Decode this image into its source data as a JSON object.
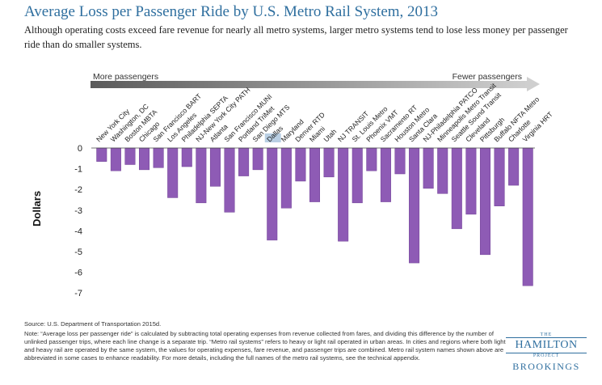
{
  "title": "Average Loss per Passenger Ride by U.S. Metro Rail System, 2013",
  "subtitle": "Although operating costs exceed fare revenue for nearly all metro systems, larger metro systems tend to lose less money per passenger ride than do smaller systems.",
  "arrow": {
    "left_label": "More passengers",
    "right_label": "Fewer passengers"
  },
  "source": "Source: U.S. Department of Transportation 2015d.",
  "note": "Note: “Average loss per passenger ride” is calculated by subtracting total operating expenses from revenue collected from fares, and dividing this difference by the number of unlinked passenger trips, where each line change is a separate trip. “Metro rail systems” refers to heavy or light rail operated in urban areas. In cities and regions where both light and heavy rail are operated by the same system, the values for operating expenses, fare revenue, and passenger trips are combined. Metro rail system names shown above are abbreviated in some cases to enhance readability. For more details, including the full names of the metro rail systems, see the technical appendix.",
  "logo": {
    "the": "THE",
    "hamilton": "HAMILTON",
    "project": "PROJECT",
    "brookings": "BROOKINGS"
  },
  "colors": {
    "bar": "#8e5bb5",
    "bar_stroke": "#6f3f95",
    "highlight": "#b9cfe3",
    "title": "#2f6f9f"
  },
  "chart_data": {
    "type": "bar",
    "title": "Average Loss per Passenger Ride by U.S. Metro Rail System, 2013",
    "xlabel": "",
    "ylabel": "Dollars",
    "ylim": [
      -7,
      0
    ],
    "yticks": [
      0,
      -1,
      -2,
      -3,
      -4,
      -5,
      -6,
      -7
    ],
    "grid": false,
    "legend": "none",
    "highlighted_category": "Dallas",
    "categories": [
      "New York City",
      "Washington, DC",
      "Boston MBTA",
      "Chicago",
      "San Francisco BART",
      "Los Angeles",
      "Philadelphia SEPTA",
      "NJ-New York City PATH",
      "Atlanta",
      "San Francisco MUNI",
      "Portland TriMet",
      "San Diego MTS",
      "Dallas",
      "Maryland",
      "Denver RTD",
      "Miami",
      "Utah",
      "NJ TRANSIT",
      "St. Louis Metro",
      "Phoenix VMT",
      "Sacramento RT",
      "Houston Metro",
      "Santa Clara",
      "NJ-Philadelphia PATCO",
      "Minneapolis Metro Transit",
      "Seattle Sound Transit",
      "Cleveland",
      "Pittsburgh",
      "Buffalo NFTA Metro",
      "Charlotte",
      "Virginia HRT"
    ],
    "values": [
      -0.65,
      -1.1,
      -0.8,
      -1.05,
      -0.95,
      -2.4,
      -0.9,
      -2.65,
      -1.85,
      -3.1,
      -1.35,
      -1.05,
      -4.45,
      -2.9,
      -1.6,
      -2.6,
      -1.4,
      -4.5,
      -2.65,
      -1.1,
      -2.6,
      -1.25,
      -5.55,
      -1.95,
      -2.2,
      -3.9,
      -3.2,
      -5.15,
      -2.8,
      -1.8,
      -6.65
    ]
  }
}
